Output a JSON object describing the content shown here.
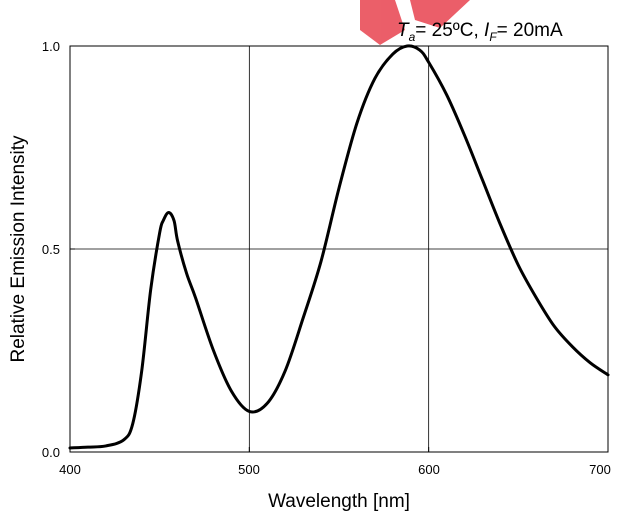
{
  "chart_data": {
    "type": "line",
    "xlabel": "Wavelength [nm]",
    "ylabel": "Relative Emission Intensity",
    "xlim": [
      400,
      700
    ],
    "ylim": [
      0.0,
      1.0
    ],
    "x_ticks": [
      400,
      500,
      600,
      700
    ],
    "y_ticks": [
      0.0,
      0.5,
      1.0
    ],
    "x_tick_labels": [
      "400",
      "500",
      "600",
      "700"
    ],
    "y_tick_labels": [
      "0.0",
      "0.5",
      "1.0"
    ],
    "grid": true,
    "condition": {
      "t_symbol": "T",
      "t_sub": "a",
      "t_value": "= 25ºC, ",
      "i_symbol": "I",
      "i_sub": "F",
      "i_value": "= 20mA"
    },
    "watermark_color": "#e8434f",
    "series": [
      {
        "color": "#000000",
        "x": [
          400,
          410,
          420,
          430,
          435,
          440,
          445,
          450,
          452,
          455,
          458,
          460,
          465,
          470,
          480,
          490,
          500,
          510,
          520,
          530,
          540,
          550,
          560,
          570,
          580,
          588,
          595,
          600,
          610,
          620,
          630,
          640,
          650,
          660,
          670,
          680,
          690,
          700
        ],
        "y": [
          0.01,
          0.012,
          0.015,
          0.03,
          0.07,
          0.2,
          0.4,
          0.54,
          0.57,
          0.59,
          0.57,
          0.52,
          0.44,
          0.38,
          0.25,
          0.15,
          0.1,
          0.12,
          0.2,
          0.33,
          0.47,
          0.65,
          0.81,
          0.92,
          0.98,
          1.0,
          0.99,
          0.96,
          0.88,
          0.78,
          0.67,
          0.56,
          0.46,
          0.38,
          0.31,
          0.26,
          0.22,
          0.19
        ]
      }
    ]
  }
}
